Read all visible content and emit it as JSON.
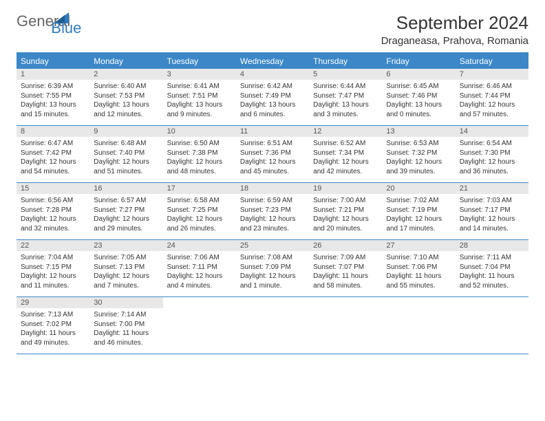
{
  "logo": {
    "text1": "General",
    "text2": "Blue"
  },
  "title": "September 2024",
  "location": "Draganeasa, Prahova, Romania",
  "colors": {
    "header_bg": "#3b87c8",
    "header_text": "#ffffff",
    "daynum_bg": "#e8e8e8",
    "border": "#3b87c8",
    "text": "#333333",
    "logo_blue": "#2e7bbf"
  },
  "day_names": [
    "Sunday",
    "Monday",
    "Tuesday",
    "Wednesday",
    "Thursday",
    "Friday",
    "Saturday"
  ],
  "weeks": [
    [
      {
        "n": "1",
        "sr": "6:39 AM",
        "ss": "7:55 PM",
        "dl": "13 hours and 15 minutes."
      },
      {
        "n": "2",
        "sr": "6:40 AM",
        "ss": "7:53 PM",
        "dl": "13 hours and 12 minutes."
      },
      {
        "n": "3",
        "sr": "6:41 AM",
        "ss": "7:51 PM",
        "dl": "13 hours and 9 minutes."
      },
      {
        "n": "4",
        "sr": "6:42 AM",
        "ss": "7:49 PM",
        "dl": "13 hours and 6 minutes."
      },
      {
        "n": "5",
        "sr": "6:44 AM",
        "ss": "7:47 PM",
        "dl": "13 hours and 3 minutes."
      },
      {
        "n": "6",
        "sr": "6:45 AM",
        "ss": "7:46 PM",
        "dl": "13 hours and 0 minutes."
      },
      {
        "n": "7",
        "sr": "6:46 AM",
        "ss": "7:44 PM",
        "dl": "12 hours and 57 minutes."
      }
    ],
    [
      {
        "n": "8",
        "sr": "6:47 AM",
        "ss": "7:42 PM",
        "dl": "12 hours and 54 minutes."
      },
      {
        "n": "9",
        "sr": "6:48 AM",
        "ss": "7:40 PM",
        "dl": "12 hours and 51 minutes."
      },
      {
        "n": "10",
        "sr": "6:50 AM",
        "ss": "7:38 PM",
        "dl": "12 hours and 48 minutes."
      },
      {
        "n": "11",
        "sr": "6:51 AM",
        "ss": "7:36 PM",
        "dl": "12 hours and 45 minutes."
      },
      {
        "n": "12",
        "sr": "6:52 AM",
        "ss": "7:34 PM",
        "dl": "12 hours and 42 minutes."
      },
      {
        "n": "13",
        "sr": "6:53 AM",
        "ss": "7:32 PM",
        "dl": "12 hours and 39 minutes."
      },
      {
        "n": "14",
        "sr": "6:54 AM",
        "ss": "7:30 PM",
        "dl": "12 hours and 36 minutes."
      }
    ],
    [
      {
        "n": "15",
        "sr": "6:56 AM",
        "ss": "7:28 PM",
        "dl": "12 hours and 32 minutes."
      },
      {
        "n": "16",
        "sr": "6:57 AM",
        "ss": "7:27 PM",
        "dl": "12 hours and 29 minutes."
      },
      {
        "n": "17",
        "sr": "6:58 AM",
        "ss": "7:25 PM",
        "dl": "12 hours and 26 minutes."
      },
      {
        "n": "18",
        "sr": "6:59 AM",
        "ss": "7:23 PM",
        "dl": "12 hours and 23 minutes."
      },
      {
        "n": "19",
        "sr": "7:00 AM",
        "ss": "7:21 PM",
        "dl": "12 hours and 20 minutes."
      },
      {
        "n": "20",
        "sr": "7:02 AM",
        "ss": "7:19 PM",
        "dl": "12 hours and 17 minutes."
      },
      {
        "n": "21",
        "sr": "7:03 AM",
        "ss": "7:17 PM",
        "dl": "12 hours and 14 minutes."
      }
    ],
    [
      {
        "n": "22",
        "sr": "7:04 AM",
        "ss": "7:15 PM",
        "dl": "12 hours and 11 minutes."
      },
      {
        "n": "23",
        "sr": "7:05 AM",
        "ss": "7:13 PM",
        "dl": "12 hours and 7 minutes."
      },
      {
        "n": "24",
        "sr": "7:06 AM",
        "ss": "7:11 PM",
        "dl": "12 hours and 4 minutes."
      },
      {
        "n": "25",
        "sr": "7:08 AM",
        "ss": "7:09 PM",
        "dl": "12 hours and 1 minute."
      },
      {
        "n": "26",
        "sr": "7:09 AM",
        "ss": "7:07 PM",
        "dl": "11 hours and 58 minutes."
      },
      {
        "n": "27",
        "sr": "7:10 AM",
        "ss": "7:06 PM",
        "dl": "11 hours and 55 minutes."
      },
      {
        "n": "28",
        "sr": "7:11 AM",
        "ss": "7:04 PM",
        "dl": "11 hours and 52 minutes."
      }
    ],
    [
      {
        "n": "29",
        "sr": "7:13 AM",
        "ss": "7:02 PM",
        "dl": "11 hours and 49 minutes."
      },
      {
        "n": "30",
        "sr": "7:14 AM",
        "ss": "7:00 PM",
        "dl": "11 hours and 46 minutes."
      },
      null,
      null,
      null,
      null,
      null
    ]
  ],
  "labels": {
    "sunrise": "Sunrise:",
    "sunset": "Sunset:",
    "daylight": "Daylight:"
  }
}
